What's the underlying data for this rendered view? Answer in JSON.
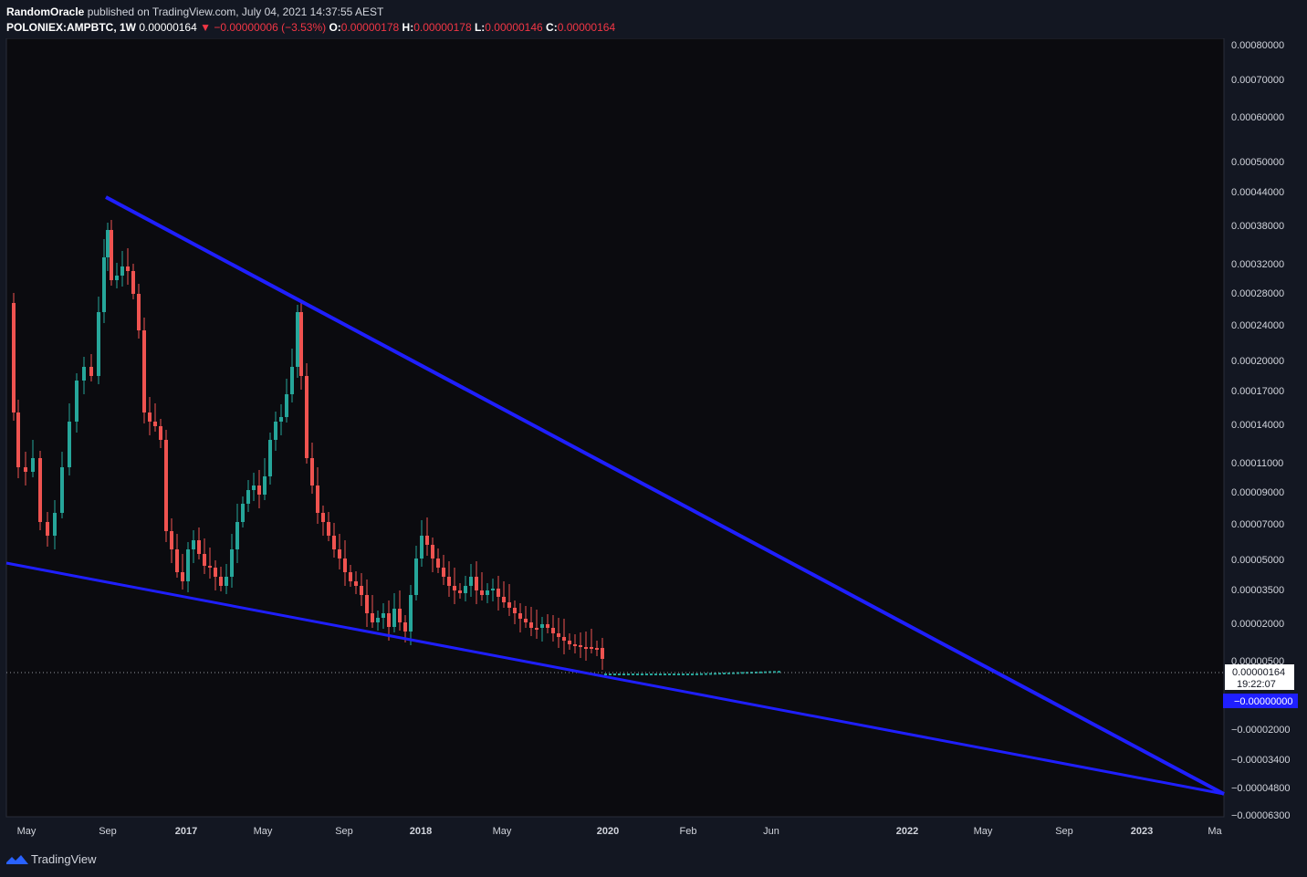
{
  "header": {
    "author": "RandomOracle",
    "published": "published on TradingView.com, July 04, 2021 14:37:55 AEST",
    "symbol": "POLONIEX:AMPBTC, 1W",
    "last": "0.00000164",
    "change_arrow": "▼",
    "change": "−0.00000006 (−3.53%)",
    "o_label": "O:",
    "o": "0.00000178",
    "h_label": "H:",
    "h": "0.00000178",
    "l_label": "L:",
    "l": "0.00000146",
    "c_label": "C:",
    "c": "0.00000164"
  },
  "footer": {
    "brand": "TradingView",
    "logo_icon": "tradingview-logo-icon"
  },
  "colors": {
    "background": "#131722",
    "up": "#26a69a",
    "down": "#ef5350",
    "trendline": "#1f1fff"
  },
  "chart_data": {
    "type": "candlestick",
    "y_ticks": [
      "0.00080000",
      "0.00070000",
      "0.00060000",
      "0.00050000",
      "0.00044000",
      "0.00038000",
      "0.00032000",
      "0.00028000",
      "0.00024000",
      "0.00020000",
      "0.00017000",
      "0.00014000",
      "0.00011000",
      "0.00009000",
      "0.00007000",
      "0.00005000",
      "0.00003500",
      "0.00002000",
      "0.00000500",
      "−0.00002000",
      "−0.00003400",
      "−0.00004800",
      "−0.00006300"
    ],
    "x_ticks": [
      {
        "label": "May",
        "bold": false
      },
      {
        "label": "Sep",
        "bold": false
      },
      {
        "label": "2017",
        "bold": true
      },
      {
        "label": "May",
        "bold": false
      },
      {
        "label": "Sep",
        "bold": false
      },
      {
        "label": "2018",
        "bold": true
      },
      {
        "label": "May",
        "bold": false
      },
      {
        "label": "2020",
        "bold": true
      },
      {
        "label": "Feb",
        "bold": false
      },
      {
        "label": "Jun",
        "bold": false
      },
      {
        "label": "2022",
        "bold": true
      },
      {
        "label": "May",
        "bold": false
      },
      {
        "label": "Sep",
        "bold": false
      },
      {
        "label": "2023",
        "bold": true
      },
      {
        "label": "Ma",
        "bold": false
      }
    ],
    "price_label": {
      "value": "0.00000164",
      "countdown": "19:22:07"
    },
    "trend_label": "−0.00000000",
    "trendlines": [
      {
        "from": [
          "2016-08",
          0.00043
        ],
        "to": [
          "2023-03",
          -4.9e-05
        ]
      },
      {
        "from": [
          "2016-03",
          4.8e-05
        ],
        "to": [
          "2023-03",
          -4.9e-05
        ]
      }
    ]
  }
}
